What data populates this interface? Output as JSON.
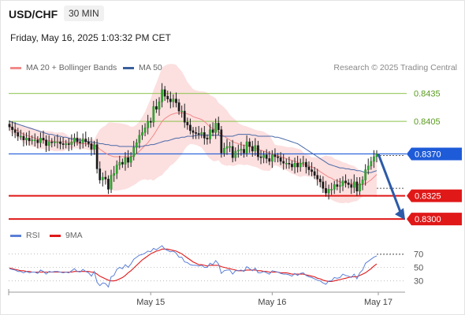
{
  "header": {
    "symbol": "USD/CHF",
    "timeframe": "30 MIN",
    "datetime": "Friday, May 16, 2025 1:03:32 PM CET",
    "credit": "Research © 2025 Trading Central"
  },
  "legend_main": [
    {
      "label": "MA 20 + Bollinger Bands",
      "color": "#f28a8a"
    },
    {
      "label": "MA 50",
      "color": "#3a5f9c"
    }
  ],
  "legend_rsi": [
    {
      "label": "RSI",
      "color": "#5b7fd6"
    },
    {
      "label": "9MA",
      "color": "#e01818"
    }
  ],
  "chart_data": [
    {
      "type": "candlestick",
      "x_tick_labels": [
        "May 15",
        "May 16",
        "May 17"
      ],
      "y_tick_labels": [
        "0.8435",
        "0.8405",
        "0.8370",
        "0.8325",
        "0.8300"
      ],
      "levels": [
        {
          "value": 0.8435,
          "label": "0.8435",
          "kind": "resistance",
          "color": "#8bc34a"
        },
        {
          "value": 0.8405,
          "label": "0.8405",
          "kind": "resistance",
          "color": "#8bc34a"
        },
        {
          "value": 0.837,
          "label": "0.8370",
          "kind": "pivot",
          "color": "#1e5bd8"
        },
        {
          "value": 0.8325,
          "label": "0.8325",
          "kind": "support",
          "color": "#e01818"
        },
        {
          "value": 0.83,
          "label": "0.8300",
          "kind": "support",
          "color": "#e01818"
        }
      ],
      "ylim": [
        0.829,
        0.8455
      ],
      "close_series": [
        0.8399,
        0.8396,
        0.8393,
        0.8389,
        0.8389,
        0.8385,
        0.8387,
        0.8384,
        0.8385,
        0.8385,
        0.8382,
        0.8387,
        0.8385,
        0.8379,
        0.8383,
        0.8382,
        0.8383,
        0.8383,
        0.8381,
        0.838,
        0.8381,
        0.838,
        0.8383,
        0.8387,
        0.8383,
        0.8382,
        0.8386,
        0.8383,
        0.8381,
        0.8375,
        0.838,
        0.8354,
        0.8342,
        0.8345,
        0.8343,
        0.8332,
        0.8347,
        0.8349,
        0.8358,
        0.8361,
        0.8359,
        0.8366,
        0.8361,
        0.8367,
        0.8377,
        0.8382,
        0.839,
        0.8393,
        0.8398,
        0.8405,
        0.8404,
        0.8421,
        0.8418,
        0.8426,
        0.8439,
        0.8432,
        0.8429,
        0.8426,
        0.8429,
        0.8425,
        0.8416,
        0.8416,
        0.8404,
        0.8401,
        0.8395,
        0.8393,
        0.8392,
        0.8391,
        0.8393,
        0.8387,
        0.8386,
        0.8396,
        0.8393,
        0.8403,
        0.8396,
        0.8371,
        0.8376,
        0.8378,
        0.8378,
        0.8366,
        0.8373,
        0.8374,
        0.8375,
        0.8371,
        0.8383,
        0.8378,
        0.8373,
        0.8379,
        0.8367,
        0.8366,
        0.8369,
        0.8365,
        0.8362,
        0.8369,
        0.8367,
        0.8366,
        0.8362,
        0.836,
        0.836,
        0.8359,
        0.8356,
        0.836,
        0.8356,
        0.836,
        0.8361,
        0.8356,
        0.8353,
        0.8351,
        0.8347,
        0.8343,
        0.834,
        0.8333,
        0.8328,
        0.8332,
        0.8332,
        0.8337,
        0.8335,
        0.8336,
        0.8341,
        0.8339,
        0.8337,
        0.8334,
        0.834,
        0.833,
        0.8338,
        0.8342,
        0.8353,
        0.8357,
        0.8362,
        0.8367,
        0.837
      ],
      "ma20": [
        0.84,
        0.8398,
        0.8396,
        0.8395,
        0.8393,
        0.8391,
        0.839,
        0.8389,
        0.8388,
        0.8387,
        0.8386,
        0.8385,
        0.8385,
        0.8384,
        0.8384,
        0.8384,
        0.8383,
        0.8383,
        0.8383,
        0.8383,
        0.8383,
        0.8382,
        0.8382,
        0.8382,
        0.8382,
        0.8381,
        0.8381,
        0.8381,
        0.838,
        0.838,
        0.8379,
        0.8378,
        0.8375,
        0.8373,
        0.8371,
        0.8369,
        0.8368,
        0.8367,
        0.8367,
        0.8367,
        0.8367,
        0.8367,
        0.8367,
        0.8367,
        0.8368,
        0.837,
        0.8373,
        0.8376,
        0.8379,
        0.8382,
        0.8386,
        0.839,
        0.8395,
        0.84,
        0.8405,
        0.8408,
        0.841,
        0.8412,
        0.8413,
        0.8414,
        0.8414,
        0.8414,
        0.8414,
        0.8413,
        0.8412,
        0.841,
        0.8409,
        0.8408,
        0.8407,
        0.8405,
        0.8402,
        0.8399,
        0.8397,
        0.8396,
        0.8394,
        0.8391,
        0.8389,
        0.8387,
        0.8385,
        0.8383,
        0.8382,
        0.8381,
        0.838,
        0.8379,
        0.8379,
        0.8378,
        0.8377,
        0.8376,
        0.8375,
        0.8374,
        0.8373,
        0.8372,
        0.8371,
        0.837,
        0.8369,
        0.8368,
        0.8367,
        0.8366,
        0.8365,
        0.8364,
        0.8363,
        0.8362,
        0.8361,
        0.836,
        0.8359,
        0.8358,
        0.8357,
        0.8356,
        0.8355,
        0.8353,
        0.8351,
        0.8349,
        0.8347,
        0.8345,
        0.8344,
        0.8342,
        0.8341,
        0.834,
        0.8339,
        0.8339,
        0.8338,
        0.8338,
        0.8338,
        0.8337,
        0.8337,
        0.8337,
        0.8338,
        0.834,
        0.8342,
        0.8345,
        0.8348
      ],
      "ma50": [
        0.8405,
        0.8404,
        0.8403,
        0.8402,
        0.8401,
        0.84,
        0.8399,
        0.8398,
        0.8397,
        0.8396,
        0.8395,
        0.8394,
        0.8393,
        0.8392,
        0.8391,
        0.8391,
        0.839,
        0.8389,
        0.8389,
        0.8388,
        0.8388,
        0.8387,
        0.8386,
        0.8386,
        0.8385,
        0.8385,
        0.8384,
        0.8384,
        0.8383,
        0.8383,
        0.8382,
        0.8382,
        0.8381,
        0.8381,
        0.838,
        0.838,
        0.8379,
        0.8379,
        0.8379,
        0.8378,
        0.8378,
        0.8378,
        0.8378,
        0.8378,
        0.8378,
        0.8378,
        0.8378,
        0.8378,
        0.8379,
        0.8379,
        0.838,
        0.838,
        0.8381,
        0.8382,
        0.8383,
        0.8384,
        0.8384,
        0.8385,
        0.8386,
        0.8387,
        0.8387,
        0.8388,
        0.8388,
        0.8389,
        0.8389,
        0.8389,
        0.839,
        0.839,
        0.839,
        0.839,
        0.839,
        0.839,
        0.839,
        0.839,
        0.839,
        0.8389,
        0.8389,
        0.8389,
        0.8389,
        0.8389,
        0.839,
        0.8391,
        0.8391,
        0.8391,
        0.8391,
        0.8391,
        0.839,
        0.839,
        0.8389,
        0.8389,
        0.8389,
        0.8389,
        0.8389,
        0.8389,
        0.8388,
        0.8388,
        0.8387,
        0.8386,
        0.8385,
        0.8384,
        0.8383,
        0.8382,
        0.8381,
        0.8379,
        0.8377,
        0.8375,
        0.8373,
        0.8371,
        0.8369,
        0.8367,
        0.8365,
        0.8363,
        0.8361,
        0.8359,
        0.8358,
        0.8357,
        0.8356,
        0.8355,
        0.8355,
        0.8354,
        0.8354,
        0.8353,
        0.8353,
        0.8352,
        0.8352,
        0.8351,
        0.835,
        0.835,
        0.835,
        0.8351,
        0.8352
      ],
      "forecast": {
        "from": 0.837,
        "to": 0.83,
        "direction": "down"
      }
    },
    {
      "type": "line",
      "y_tick_labels": [
        "70",
        "50",
        "30"
      ],
      "ylim": [
        18,
        82
      ],
      "rsi": [
        48,
        47,
        46,
        44,
        44,
        42,
        44,
        42,
        43,
        43,
        41,
        46,
        44,
        40,
        44,
        43,
        44,
        44,
        43,
        42,
        43,
        42,
        45,
        48,
        44,
        43,
        47,
        44,
        42,
        37,
        44,
        28,
        23,
        27,
        26,
        21,
        36,
        38,
        47,
        50,
        48,
        54,
        50,
        55,
        62,
        65,
        68,
        69,
        71,
        74,
        73,
        78,
        76,
        79,
        82,
        77,
        75,
        73,
        74,
        71,
        65,
        65,
        58,
        57,
        54,
        53,
        53,
        52,
        53,
        50,
        50,
        56,
        54,
        60,
        55,
        41,
        45,
        46,
        46,
        40,
        45,
        45,
        46,
        44,
        51,
        48,
        45,
        49,
        42,
        42,
        44,
        42,
        40,
        45,
        44,
        43,
        41,
        40,
        40,
        39,
        37,
        41,
        38,
        41,
        42,
        38,
        36,
        35,
        33,
        31,
        30,
        27,
        25,
        30,
        30,
        35,
        34,
        35,
        40,
        38,
        37,
        35,
        40,
        33,
        42,
        46,
        56,
        59,
        62,
        65,
        67
      ],
      "ma9": [
        49,
        48,
        47,
        46,
        45,
        45,
        44,
        44,
        43,
        43,
        43,
        43,
        43,
        43,
        43,
        43,
        43,
        43,
        43,
        43,
        43,
        43,
        43,
        44,
        44,
        44,
        44,
        44,
        44,
        43,
        43,
        40,
        37,
        35,
        33,
        31,
        30,
        30,
        31,
        33,
        35,
        38,
        42,
        45,
        49,
        53,
        57,
        61,
        64,
        67,
        70,
        72,
        74,
        75,
        77,
        77,
        77,
        76,
        75,
        74,
        72,
        70,
        67,
        64,
        61,
        58,
        56,
        54,
        54,
        53,
        52,
        53,
        53,
        53,
        53,
        51,
        50,
        49,
        48,
        47,
        46,
        45,
        45,
        45,
        46,
        46,
        46,
        46,
        45,
        45,
        44,
        44,
        43,
        43,
        43,
        43,
        42,
        42,
        42,
        41,
        40,
        40,
        40,
        40,
        40,
        39,
        38,
        37,
        36,
        34,
        33,
        31,
        30,
        29,
        29,
        30,
        31,
        32,
        33,
        34,
        35,
        36,
        36,
        36,
        38,
        40,
        42,
        45,
        48,
        52,
        55
      ]
    }
  ]
}
